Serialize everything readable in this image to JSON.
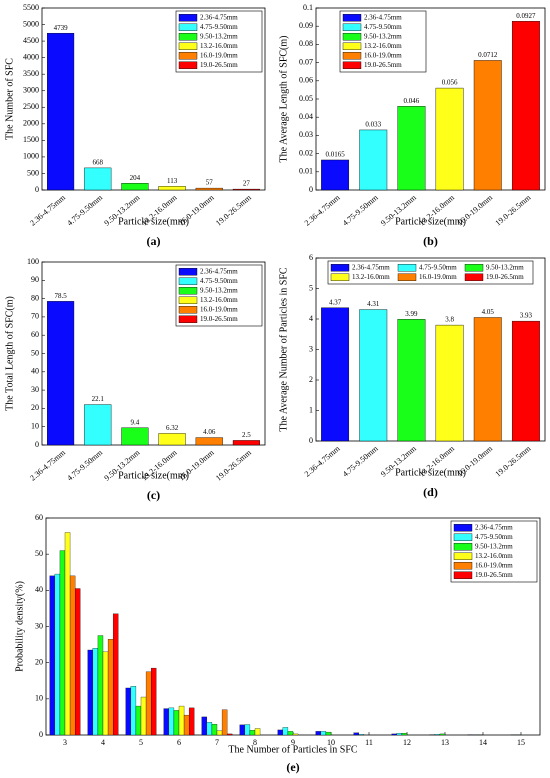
{
  "chart_data": [
    {
      "type": "bar",
      "label": "(a)",
      "xlabel": "Particle size(mm)",
      "ylabel": "The Number of SFC",
      "categories": [
        "2.36-4.75mm",
        "4.75-9.50mm",
        "9.50-13.2mm",
        "13.2-16.0mm",
        "16.0-19.0mm",
        "19.0-26.5mm"
      ],
      "values": [
        4739,
        668,
        204,
        113,
        57,
        27
      ],
      "colors": [
        "#0a0aff",
        "#33ffff",
        "#1aff1a",
        "#ffff1a",
        "#ff8000",
        "#ff0000"
      ],
      "ylim": [
        0,
        5500
      ],
      "yticks": [
        0,
        500,
        1000,
        1500,
        2000,
        2500,
        3000,
        3500,
        4000,
        4500,
        5000,
        5500
      ],
      "legend": "upper right"
    },
    {
      "type": "bar",
      "label": "(b)",
      "xlabel": "Particle size(mm)",
      "ylabel": "The Average Length of SFC(m)",
      "categories": [
        "2.36-4.75mm",
        "4.75-9.50mm",
        "9.50-13.2mm",
        "13.2-16.0mm",
        "16.0-19.0mm",
        "19.0-26.5mm"
      ],
      "values": [
        0.0165,
        0.033,
        0.046,
        0.056,
        0.0712,
        0.0927
      ],
      "colors": [
        "#0a0aff",
        "#33ffff",
        "#1aff1a",
        "#ffff1a",
        "#ff8000",
        "#ff0000"
      ],
      "ylim": [
        0,
        0.1
      ],
      "yticks": [
        0,
        0.01,
        0.02,
        0.03,
        0.04,
        0.05,
        0.06,
        0.07,
        0.08,
        0.09,
        0.1
      ],
      "legend": "upper left"
    },
    {
      "type": "bar",
      "label": "(c)",
      "xlabel": "Particle size(mm)",
      "ylabel": "The Total Length of SFC(m)",
      "categories": [
        "2.36-4.75mm",
        "4.75-9.50mm",
        "9.50-13.2mm",
        "13.2-16.0mm",
        "16.0-19.0mm",
        "19.0-26.5mm"
      ],
      "values": [
        78.5,
        22.1,
        9.4,
        6.32,
        4.06,
        2.5
      ],
      "colors": [
        "#0a0aff",
        "#33ffff",
        "#1aff1a",
        "#ffff1a",
        "#ff8000",
        "#ff0000"
      ],
      "ylim": [
        0,
        100
      ],
      "yticks": [
        0,
        10,
        20,
        30,
        40,
        50,
        60,
        70,
        80,
        90,
        100
      ],
      "legend": "upper right"
    },
    {
      "type": "bar",
      "label": "(d)",
      "xlabel": "Particle size(mm)",
      "ylabel": "The Average Number of Particles in SFC",
      "categories": [
        "2.36-4.75mm",
        "4.75-9.50mm",
        "9.50-13.2mm",
        "13.2-16.0mm",
        "16.0-19.0mm",
        "19.0-26.5mm"
      ],
      "values": [
        4.37,
        4.31,
        3.99,
        3.8,
        4.05,
        3.93
      ],
      "colors": [
        "#0a0aff",
        "#33ffff",
        "#1aff1a",
        "#ffff1a",
        "#ff8000",
        "#ff0000"
      ],
      "ylim": [
        0,
        6
      ],
      "yticks": [
        0,
        1,
        2,
        3,
        4,
        5,
        6
      ],
      "legend": "upper center"
    },
    {
      "type": "grouped_bar",
      "label": "(e)",
      "xlabel": "The Number of Particles in SFC",
      "ylabel": "Probability density(%)",
      "categories": [
        3,
        4,
        5,
        6,
        7,
        8,
        9,
        10,
        11,
        12,
        13,
        14,
        15
      ],
      "series": [
        {
          "name": "2.36-4.75mm",
          "color": "#0a0aff",
          "values": [
            44,
            23.5,
            13,
            7.3,
            5,
            2.8,
            1.4,
            1,
            0.6,
            0.3,
            0.1,
            0.1,
            0
          ]
        },
        {
          "name": "4.75-9.50mm",
          "color": "#33ffff",
          "values": [
            44.5,
            24,
            13.5,
            7.5,
            3.5,
            2.9,
            2.1,
            1,
            0.2,
            0.5,
            0.2,
            0.1,
            0.05
          ]
        },
        {
          "name": "9.50-13.2mm",
          "color": "#1aff1a",
          "values": [
            51,
            27.5,
            8,
            6.8,
            3,
            1.3,
            1,
            0.8,
            0,
            0.5,
            0.3,
            0.1,
            0.1
          ]
        },
        {
          "name": "13.2-16.0mm",
          "color": "#ffff1a",
          "values": [
            56,
            23,
            10.5,
            8,
            1.2,
            1.8,
            0.3,
            0,
            0,
            0,
            0,
            0,
            0
          ]
        },
        {
          "name": "16.0-19.0mm",
          "color": "#ff8000",
          "values": [
            44,
            26.5,
            17.5,
            5.5,
            7,
            0,
            0,
            0,
            0,
            0,
            0,
            0,
            0
          ]
        },
        {
          "name": "19.0-26.5mm",
          "color": "#ff0000",
          "values": [
            40.5,
            33.5,
            18.5,
            7.5,
            0.3,
            0,
            0,
            0,
            0,
            0,
            0,
            0,
            0
          ]
        }
      ],
      "ylim": [
        0,
        60
      ],
      "yticks": [
        0,
        10,
        20,
        30,
        40,
        50,
        60
      ],
      "legend": "upper right"
    }
  ]
}
